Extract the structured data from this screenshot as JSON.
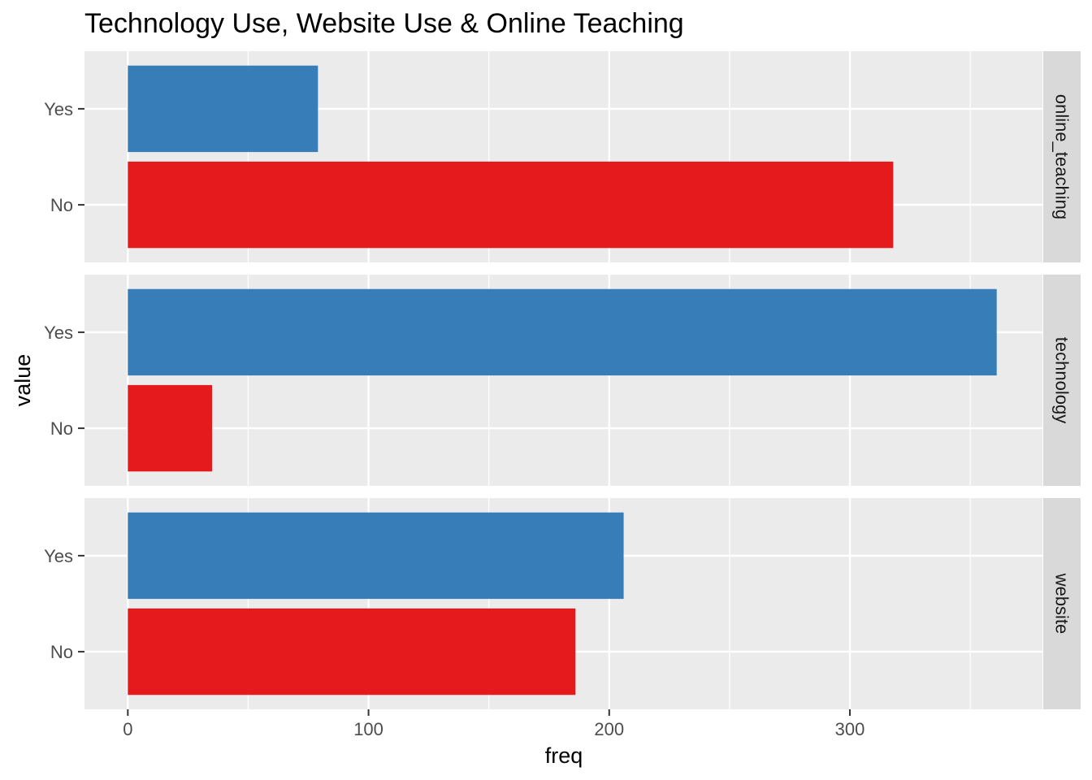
{
  "chart_data": {
    "type": "bar",
    "orientation": "horizontal",
    "title": "Technology Use, Website Use & Online Teaching",
    "xlabel": "freq",
    "ylabel": "value",
    "xlim": [
      -18,
      380
    ],
    "x_ticks": [
      0,
      100,
      200,
      300
    ],
    "categories": [
      "No",
      "Yes"
    ],
    "grid": true,
    "colors": {
      "No": "#e41a1c",
      "Yes": "#377eb8",
      "panel_bg": "#ebebeb",
      "strip_bg": "#d9d9d9",
      "grid": "#ffffff"
    },
    "facets": [
      {
        "label": "online_teaching",
        "values": {
          "No": 318,
          "Yes": 79
        }
      },
      {
        "label": "technology",
        "values": {
          "No": 35,
          "Yes": 361
        }
      },
      {
        "label": "website",
        "values": {
          "No": 186,
          "Yes": 206
        }
      }
    ]
  }
}
